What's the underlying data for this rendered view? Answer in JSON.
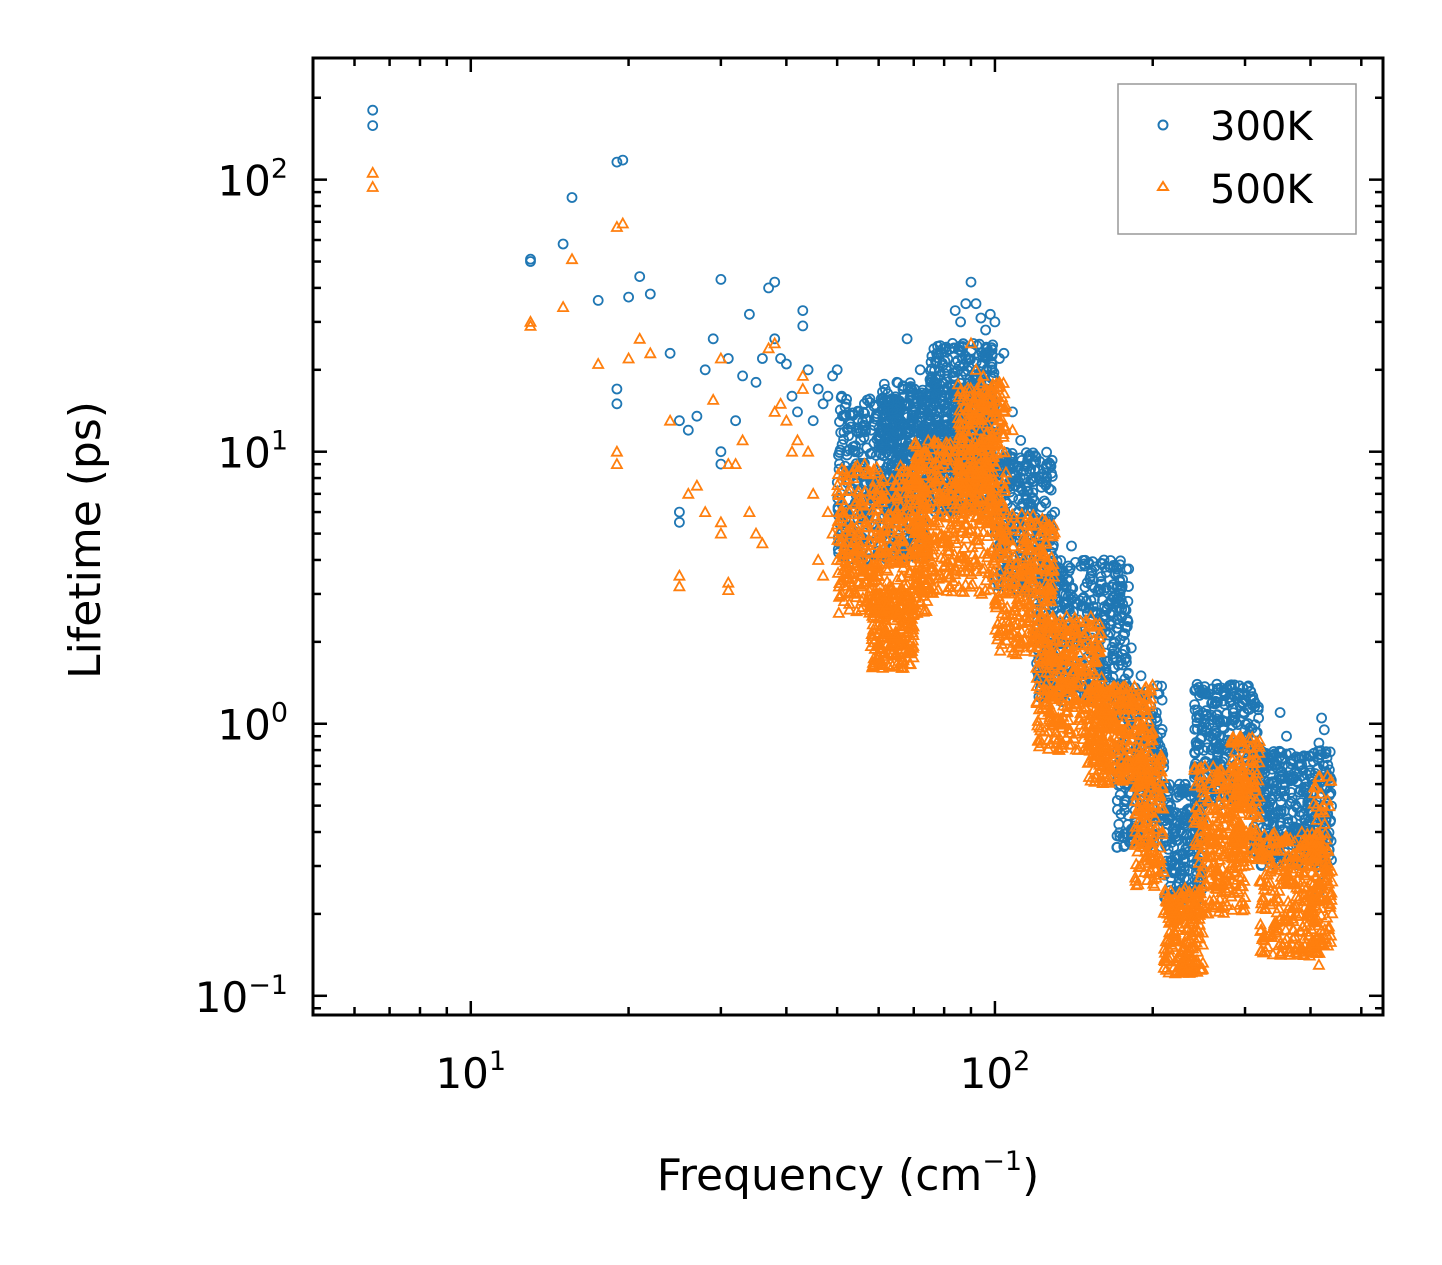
{
  "chart_data": {
    "type": "scatter",
    "title": "",
    "xlabel": "Frequency (cm",
    "xlabel_sup": "−1",
    "xlabel_tail": ")",
    "ylabel": "Lifetime (ps)",
    "xscale": "log",
    "yscale": "log",
    "xlim": [
      5,
      550
    ],
    "ylim": [
      0.085,
      280
    ],
    "x_ticks": [
      {
        "value": 10,
        "base": "10",
        "exp": "1"
      },
      {
        "value": 100,
        "base": "10",
        "exp": "2"
      }
    ],
    "y_ticks": [
      {
        "value": 0.1,
        "base": "10",
        "exp": "−1"
      },
      {
        "value": 1,
        "base": "10",
        "exp": "0"
      },
      {
        "value": 10,
        "base": "10",
        "exp": "1"
      },
      {
        "value": 100,
        "base": "10",
        "exp": "2"
      }
    ],
    "legend_position": "top-right",
    "series": [
      {
        "name": "300K",
        "marker": "circle",
        "color": "#1f77b4",
        "bands": [
          [
            50,
            75,
            4,
            16
          ],
          [
            60,
            100,
            6,
            18
          ],
          [
            75,
            100,
            8,
            25
          ],
          [
            100,
            130,
            3,
            10
          ],
          [
            120,
            180,
            1.2,
            4
          ],
          [
            170,
            210,
            0.35,
            1.4
          ],
          [
            210,
            250,
            0.22,
            0.6
          ],
          [
            240,
            320,
            0.5,
            1.4
          ],
          [
            310,
            440,
            0.3,
            0.8
          ]
        ],
        "points": [
          [
            6.5,
            180
          ],
          [
            6.5,
            158
          ],
          [
            13,
            50
          ],
          [
            13,
            51
          ],
          [
            15,
            58
          ],
          [
            15.6,
            86
          ],
          [
            17.5,
            36
          ],
          [
            19,
            116
          ],
          [
            19.5,
            118
          ],
          [
            19,
            15
          ],
          [
            19,
            17
          ],
          [
            20,
            37
          ],
          [
            21,
            44
          ],
          [
            22,
            38
          ],
          [
            24,
            23
          ],
          [
            25,
            13
          ],
          [
            25,
            6
          ],
          [
            25,
            5.5
          ],
          [
            26,
            12
          ],
          [
            27,
            13.5
          ],
          [
            28,
            20
          ],
          [
            29,
            26
          ],
          [
            30,
            43
          ],
          [
            30,
            10
          ],
          [
            30,
            9
          ],
          [
            31,
            22
          ],
          [
            32,
            13
          ],
          [
            33,
            19
          ],
          [
            34,
            32
          ],
          [
            35,
            18
          ],
          [
            36,
            22
          ],
          [
            37,
            40
          ],
          [
            38,
            42
          ],
          [
            38,
            26
          ],
          [
            39,
            22
          ],
          [
            40,
            21
          ],
          [
            41,
            16
          ],
          [
            42,
            14
          ],
          [
            43,
            33
          ],
          [
            43,
            29
          ],
          [
            44,
            20
          ],
          [
            45,
            13
          ],
          [
            46,
            17
          ],
          [
            47,
            15
          ],
          [
            48,
            16
          ],
          [
            49,
            19
          ],
          [
            50,
            20
          ],
          [
            51,
            16
          ],
          [
            52,
            15
          ],
          [
            54,
            10
          ],
          [
            55,
            14
          ],
          [
            56,
            9
          ],
          [
            58,
            12
          ],
          [
            62,
            11
          ],
          [
            65,
            18
          ],
          [
            68,
            26
          ],
          [
            72,
            20
          ],
          [
            78,
            17
          ],
          [
            83,
            25
          ],
          [
            84,
            33
          ],
          [
            86,
            30
          ],
          [
            88,
            35
          ],
          [
            90,
            42
          ],
          [
            92,
            35
          ],
          [
            94,
            31
          ],
          [
            96,
            28
          ],
          [
            98,
            32
          ],
          [
            100,
            30
          ],
          [
            102,
            22
          ],
          [
            104,
            23
          ],
          [
            108,
            14
          ],
          [
            112,
            11
          ],
          [
            130,
            6
          ],
          [
            140,
            4.5
          ],
          [
            150,
            3.3
          ],
          [
            158,
            3.1
          ],
          [
            163,
            3.6
          ],
          [
            170,
            2.8
          ],
          [
            175,
            1.8
          ],
          [
            182,
            1.9
          ],
          [
            190,
            1.5
          ],
          [
            200,
            0.9
          ],
          [
            210,
            0.3
          ],
          [
            230,
            0.29
          ],
          [
            350,
            1.1
          ],
          [
            360,
            0.9
          ],
          [
            380,
            0.7
          ],
          [
            395,
            0.5
          ],
          [
            405,
            0.6
          ],
          [
            415,
            0.85
          ],
          [
            420,
            1.05
          ],
          [
            425,
            0.95
          ],
          [
            430,
            0.75
          ],
          [
            435,
            0.55
          ],
          [
            420,
            0.28
          ],
          [
            415,
            0.24
          ]
        ]
      },
      {
        "name": "500K",
        "marker": "triangle",
        "color": "#ff7f0e",
        "bands": [
          [
            50,
            75,
            2.5,
            9
          ],
          [
            58,
            70,
            1.6,
            3
          ],
          [
            70,
            100,
            3,
            11
          ],
          [
            85,
            105,
            6,
            18
          ],
          [
            100,
            130,
            1.8,
            6
          ],
          [
            120,
            160,
            0.8,
            2.5
          ],
          [
            150,
            200,
            0.6,
            1.4
          ],
          [
            185,
            210,
            0.25,
            0.8
          ],
          [
            210,
            250,
            0.12,
            0.25
          ],
          [
            240,
            300,
            0.2,
            0.7
          ],
          [
            280,
            320,
            0.3,
            0.9
          ],
          [
            320,
            420,
            0.14,
            0.4
          ],
          [
            405,
            440,
            0.15,
            0.65
          ]
        ],
        "points": [
          [
            6.5,
            106
          ],
          [
            6.5,
            94
          ],
          [
            13,
            30
          ],
          [
            13,
            29
          ],
          [
            15,
            34
          ],
          [
            15.6,
            51
          ],
          [
            17.5,
            21
          ],
          [
            19,
            67
          ],
          [
            19.5,
            69
          ],
          [
            19,
            9
          ],
          [
            19,
            10
          ],
          [
            20,
            22
          ],
          [
            21,
            26
          ],
          [
            22,
            23
          ],
          [
            24,
            13
          ],
          [
            25,
            3.5
          ],
          [
            25,
            3.2
          ],
          [
            26,
            7
          ],
          [
            27,
            7.5
          ],
          [
            28,
            6
          ],
          [
            29,
            15.5
          ],
          [
            30,
            22
          ],
          [
            30,
            5.5
          ],
          [
            30,
            5
          ],
          [
            31,
            9
          ],
          [
            32,
            9
          ],
          [
            33,
            11
          ],
          [
            34,
            6
          ],
          [
            35,
            5
          ],
          [
            36,
            4.6
          ],
          [
            37,
            24
          ],
          [
            38,
            25
          ],
          [
            38,
            14
          ],
          [
            39,
            15
          ],
          [
            40,
            13
          ],
          [
            41,
            10
          ],
          [
            42,
            11
          ],
          [
            43,
            19
          ],
          [
            43,
            17
          ],
          [
            44,
            10
          ],
          [
            45,
            7
          ],
          [
            46,
            4
          ],
          [
            47,
            3.5
          ],
          [
            48,
            6
          ],
          [
            49,
            5
          ],
          [
            50,
            4
          ],
          [
            51,
            3
          ],
          [
            52,
            3.6
          ],
          [
            54,
            3
          ],
          [
            56,
            2.9
          ],
          [
            31,
            3.3
          ],
          [
            31,
            3.1
          ],
          [
            90,
            25
          ],
          [
            92,
            20
          ],
          [
            95,
            19
          ],
          [
            98,
            17
          ],
          [
            102,
            18
          ],
          [
            104,
            14
          ],
          [
            108,
            12
          ],
          [
            415,
            0.13
          ],
          [
            420,
            0.21
          ]
        ]
      }
    ]
  }
}
